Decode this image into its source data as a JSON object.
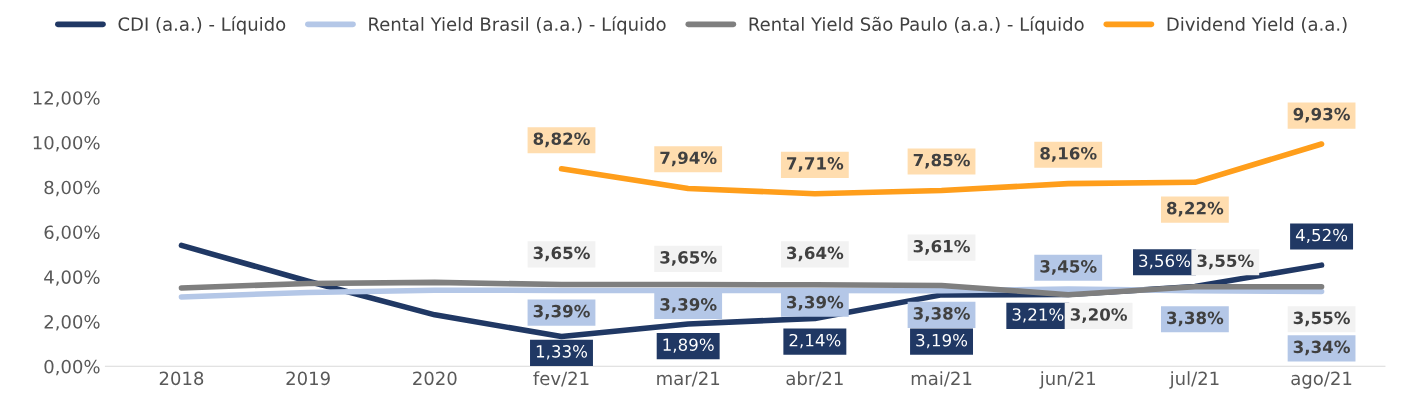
{
  "chart_data": {
    "type": "line",
    "categories": [
      "2018",
      "2019",
      "2020",
      "fev/21",
      "mar/21",
      "abr/21",
      "mai/21",
      "jun/21",
      "jul/21",
      "ago/21"
    ],
    "series": [
      {
        "name": "CDI (a.a.) - Líquido",
        "color": "#203864",
        "values": [
          5.4,
          3.8,
          2.3,
          1.33,
          1.89,
          2.14,
          3.19,
          3.21,
          3.56,
          4.52
        ],
        "value_labels": [
          null,
          null,
          null,
          "1,33%",
          "1,89%",
          "2,14%",
          "3,19%",
          "3,21%",
          "3,56%",
          "4,52%"
        ]
      },
      {
        "name": "Rental Yield Brasil (a.a.) - Líquido",
        "color": "#b4c7e7",
        "values": [
          3.1,
          3.3,
          3.4,
          3.39,
          3.39,
          3.39,
          3.38,
          3.45,
          3.38,
          3.34
        ],
        "value_labels": [
          null,
          null,
          null,
          "3,39%",
          "3,39%",
          "3,39%",
          "3,38%",
          "3,45%",
          "3,38%",
          "3,34%"
        ]
      },
      {
        "name": "Rental Yield São Paulo (a.a.) - Líquido",
        "color": "#7f7f7f",
        "values": [
          3.5,
          3.7,
          3.75,
          3.65,
          3.65,
          3.64,
          3.61,
          3.2,
          3.55,
          3.55
        ],
        "value_labels": [
          null,
          null,
          null,
          "3,65%",
          "3,65%",
          "3,64%",
          "3,61%",
          "3,20%",
          "3,55%",
          "3,55%"
        ]
      },
      {
        "name": "Dividend Yield (a.a.)",
        "color": "#ff9e1b",
        "values": [
          null,
          null,
          null,
          8.82,
          7.94,
          7.71,
          7.85,
          8.16,
          8.22,
          9.93
        ],
        "value_labels": [
          null,
          null,
          null,
          "8,82%",
          "7,94%",
          "7,71%",
          "7,85%",
          "8,16%",
          "8,22%",
          "9,93%"
        ]
      }
    ],
    "ylim": [
      0,
      12
    ],
    "yticks": [
      {
        "value": 0,
        "label": "0,00%"
      },
      {
        "value": 2,
        "label": "2,00%"
      },
      {
        "value": 4,
        "label": "4,00%"
      },
      {
        "value": 6,
        "label": "6,00%"
      },
      {
        "value": 8,
        "label": "8,00%"
      },
      {
        "value": 10,
        "label": "10,00%"
      },
      {
        "value": 12,
        "label": "12,00%"
      }
    ],
    "grid": false,
    "legend": "top",
    "marker": "none",
    "line_style": "solid"
  }
}
